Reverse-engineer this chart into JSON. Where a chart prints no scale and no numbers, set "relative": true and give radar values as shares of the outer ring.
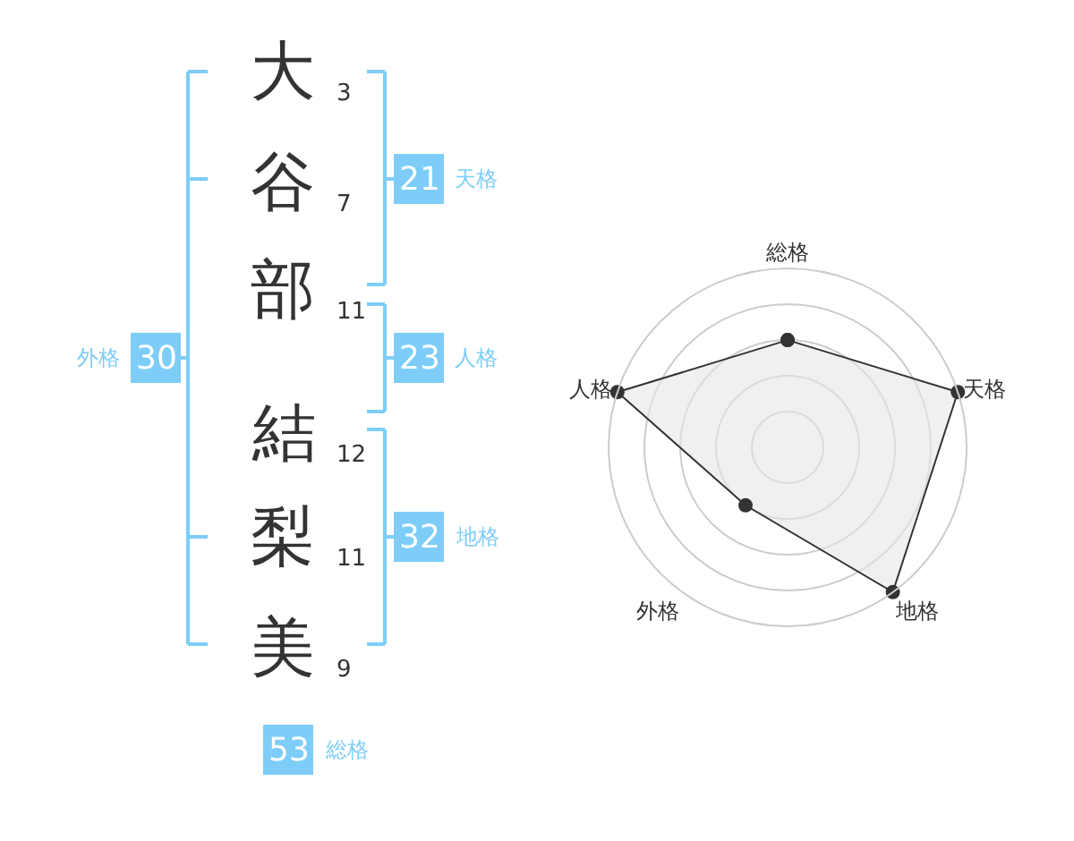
{
  "chart_data": [
    {
      "type": "other",
      "categories": [
        "大",
        "谷",
        "部",
        "結",
        "梨",
        "美"
      ],
      "color": "#7dcdf8",
      "annotations": [
        "3",
        "7",
        "11",
        "12",
        "11",
        "9",
        "21",
        "天格",
        "23",
        "人格",
        "32",
        "地格",
        "30",
        "外格",
        "53",
        "総格"
      ]
    },
    {
      "type": "radar",
      "relative": true,
      "grid": true,
      "marker": "circle",
      "categories": [
        "総格",
        "天格",
        "地格",
        "外格",
        "人格"
      ],
      "series": [
        {
          "color": "#333333",
          "values": [
            0.6,
            1,
            1,
            0.4,
            1
          ]
        }
      ]
    }
  ]
}
